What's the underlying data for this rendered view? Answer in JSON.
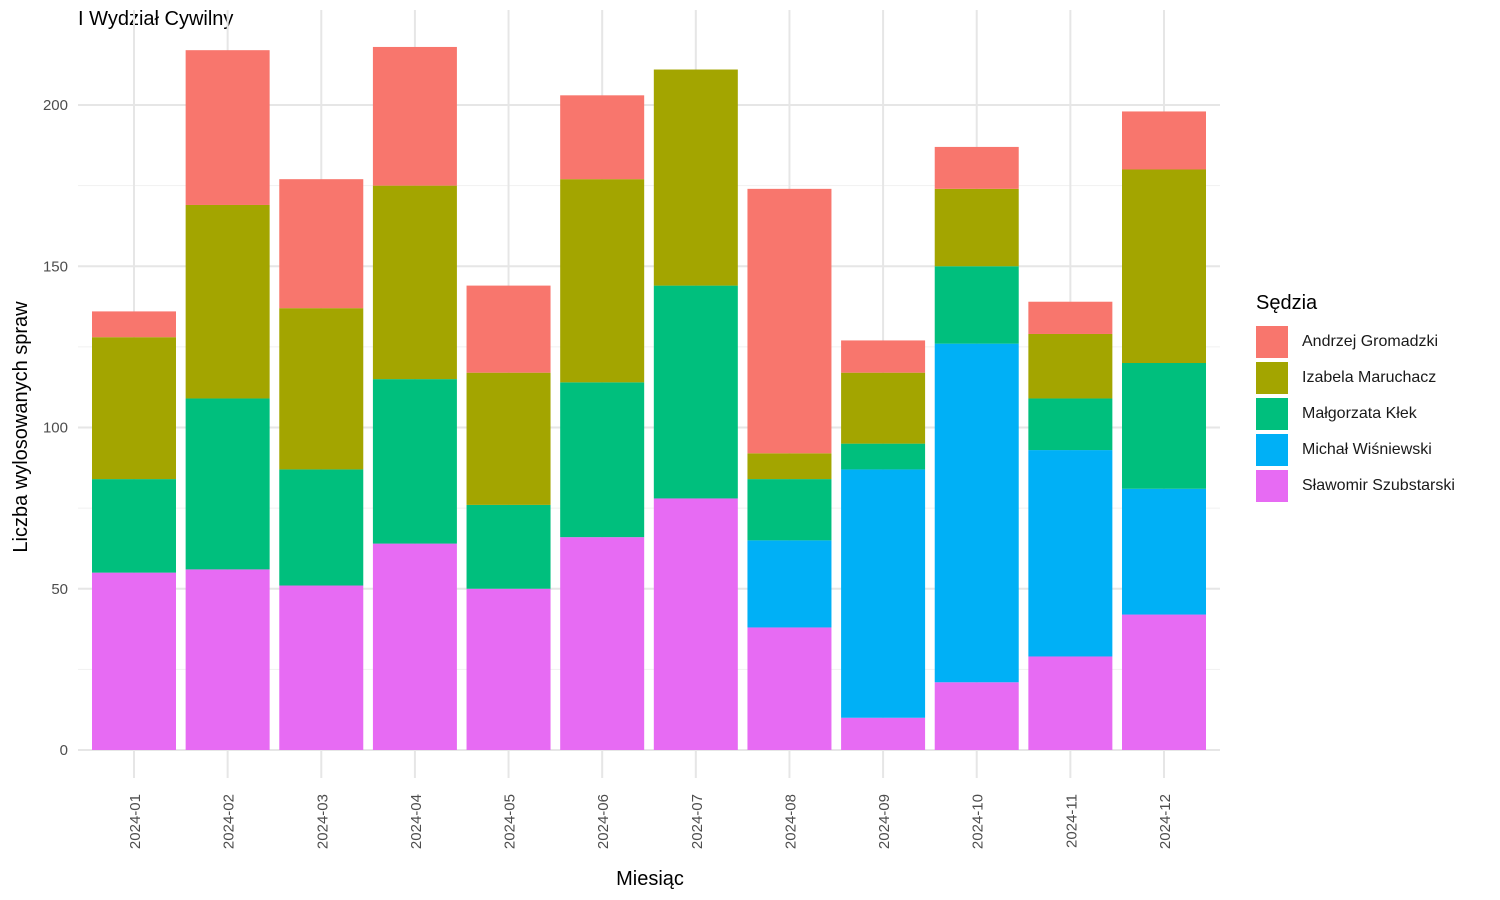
{
  "chart_data": {
    "type": "bar",
    "stacked": true,
    "title": "I Wydział Cywilny",
    "xlabel": "Miesiąc",
    "ylabel": "Liczba wylosowanych spraw",
    "ylim": [
      0,
      225
    ],
    "yticks": [
      0,
      50,
      100,
      150,
      200
    ],
    "grid": true,
    "legend_title": "Sędzia",
    "legend_position": "right",
    "categories": [
      "2024-01",
      "2024-02",
      "2024-03",
      "2024-04",
      "2024-05",
      "2024-06",
      "2024-07",
      "2024-08",
      "2024-09",
      "2024-10",
      "2024-11",
      "2024-12"
    ],
    "series": [
      {
        "name": "Sławomir Szubstarski",
        "color": "#E76BF3",
        "values": [
          55,
          56,
          51,
          64,
          50,
          66,
          78,
          38,
          10,
          21,
          29,
          42
        ]
      },
      {
        "name": "Michał Wiśniewski",
        "color": "#00B0F6",
        "values": [
          0,
          0,
          0,
          0,
          0,
          0,
          0,
          27,
          77,
          105,
          64,
          39
        ]
      },
      {
        "name": "Małgorzata Kłek",
        "color": "#00BF7D",
        "values": [
          29,
          53,
          36,
          51,
          26,
          48,
          66,
          19,
          8,
          24,
          16,
          39
        ]
      },
      {
        "name": "Izabela Maruchacz",
        "color": "#A3A500",
        "values": [
          44,
          60,
          50,
          60,
          41,
          63,
          67,
          8,
          22,
          24,
          20,
          60
        ]
      },
      {
        "name": "Andrzej Gromadzki",
        "color": "#F8766D",
        "values": [
          8,
          48,
          40,
          43,
          27,
          26,
          0,
          82,
          10,
          13,
          10,
          18
        ]
      }
    ],
    "legend_order": [
      "Andrzej Gromadzki",
      "Izabela Maruchacz",
      "Małgorzata Kłek",
      "Michał Wiśniewski",
      "Sławomir Szubstarski"
    ]
  }
}
